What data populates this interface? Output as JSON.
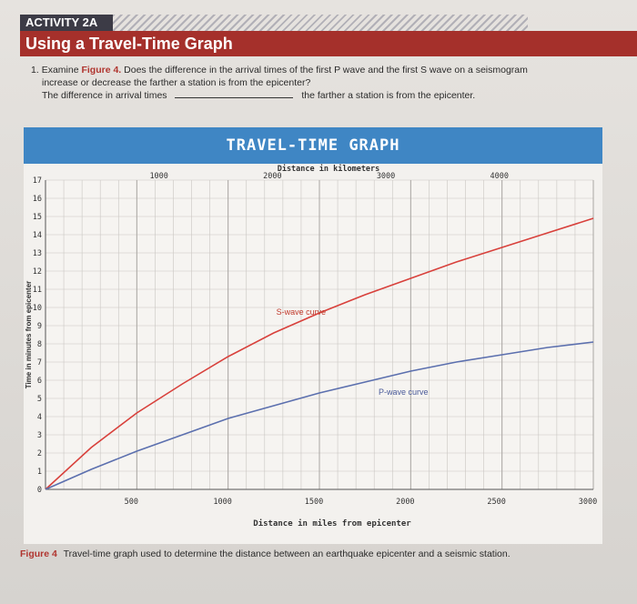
{
  "header": {
    "activity": "ACTIVITY 2A",
    "title": "Using a Travel-Time Graph"
  },
  "question": {
    "number": "1.",
    "text_before_ref": "Examine",
    "figure_ref": "Figure 4.",
    "text_after_ref": "Does the difference in the arrival times of the first P wave and the first S wave on a seismogram",
    "line2": "increase or decrease the farther a station is from the epicenter?",
    "answer_prefix": "The difference in arrival times",
    "answer_suffix": "the farther a station is from the epicenter."
  },
  "caption": {
    "label": "Figure 4",
    "text": "Travel-time graph used to determine the distance between an earthquake epicenter and a seismic station."
  },
  "chart_data": {
    "type": "line",
    "title": "TRAVEL-TIME GRAPH",
    "top_axis_label": "Distance in kilometers",
    "xlabel": "Distance in miles from epicenter",
    "ylabel": "Time in minutes from epicenter",
    "xlim": [
      0,
      3000
    ],
    "ylim": [
      0,
      17
    ],
    "x_ticks": [
      500,
      1000,
      1500,
      2000,
      2500,
      3000
    ],
    "y_ticks": [
      0,
      1,
      2,
      3,
      4,
      5,
      6,
      7,
      8,
      9,
      10,
      11,
      12,
      13,
      14,
      15,
      16,
      17
    ],
    "km_ticks": [
      1000,
      2000,
      3000,
      4000
    ],
    "grid": true,
    "series": [
      {
        "name": "S-wave curve",
        "color": "#d8403b",
        "x": [
          0,
          250,
          500,
          750,
          1000,
          1250,
          1500,
          1750,
          2000,
          2250,
          2500,
          2750,
          3000
        ],
        "values": [
          0,
          2.3,
          4.2,
          5.8,
          7.3,
          8.6,
          9.7,
          10.7,
          11.6,
          12.5,
          13.3,
          14.1,
          14.9
        ]
      },
      {
        "name": "P-wave curve",
        "color": "#5b6fae",
        "x": [
          0,
          250,
          500,
          750,
          1000,
          1250,
          1500,
          1750,
          2000,
          2250,
          2500,
          2750,
          3000
        ],
        "values": [
          0,
          1.1,
          2.1,
          3.0,
          3.9,
          4.6,
          5.3,
          5.9,
          6.5,
          7.0,
          7.4,
          7.8,
          8.1
        ]
      }
    ]
  }
}
